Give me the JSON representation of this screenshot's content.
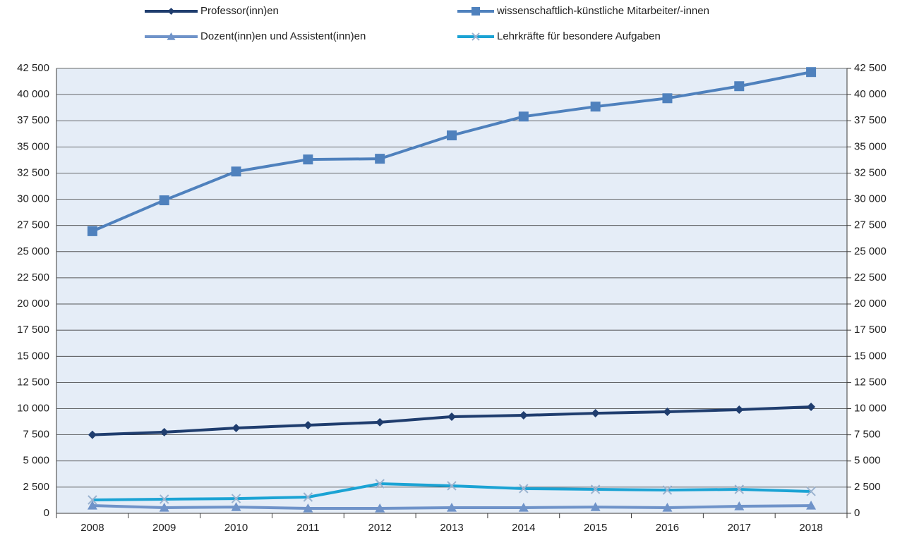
{
  "chart_data": {
    "type": "line",
    "categories": [
      "2008",
      "2009",
      "2010",
      "2011",
      "2012",
      "2013",
      "2014",
      "2015",
      "2016",
      "2017",
      "2018"
    ],
    "series": [
      {
        "name": "Professor(inn)en",
        "color": "#1f3d6e",
        "marker": "diamond",
        "values": [
          7500,
          7750,
          8150,
          8420,
          8700,
          9230,
          9360,
          9560,
          9700,
          9900,
          10170
        ]
      },
      {
        "name": "wissenschaftlich-künstliche Mitarbeiter/-innen",
        "color": "#4f81bd",
        "marker": "square",
        "values": [
          26950,
          29900,
          32650,
          33800,
          33870,
          36100,
          37900,
          38850,
          39650,
          40800,
          42150
        ]
      },
      {
        "name": "Dozent(inn)en und Assistent(inn)en",
        "color": "#6f93c9",
        "marker": "triangle",
        "values": [
          740,
          540,
          600,
          470,
          470,
          540,
          540,
          600,
          540,
          670,
          740
        ]
      },
      {
        "name": "Lehrkräfte für besondere Aufgaben",
        "color": "#1ba3d4",
        "marker": "x",
        "values": [
          1280,
          1350,
          1410,
          1550,
          2830,
          2630,
          2360,
          2290,
          2220,
          2290,
          2090
        ]
      }
    ],
    "ylim": [
      0,
      42500
    ],
    "yticks": [
      0,
      {
        "value": 2500,
        "label": "2 500"
      },
      {
        "value": 5000,
        "label": "5 000"
      },
      {
        "value": 7500,
        "label": "7 500"
      },
      {
        "value": 10000,
        "label": "10 000"
      },
      {
        "value": 12500,
        "label": "12 500"
      },
      {
        "value": 15000,
        "label": "15 000"
      },
      {
        "value": 17500,
        "label": "17 500"
      },
      {
        "value": 20000,
        "label": "20 000"
      },
      {
        "value": 22500,
        "label": "22 500"
      },
      {
        "value": 25000,
        "label": "25 000"
      },
      {
        "value": 27500,
        "label": "27 500"
      },
      {
        "value": 30000,
        "label": "30 000"
      },
      {
        "value": 32500,
        "label": "32 500"
      },
      {
        "value": 35000,
        "label": "35 000"
      },
      {
        "value": 37500,
        "label": "37 500"
      },
      {
        "value": 40000,
        "label": "40 000"
      },
      {
        "value": 42500,
        "label": "42 500"
      }
    ],
    "y2lim": [
      0,
      42500
    ],
    "y2ticks": [
      0,
      {
        "value": 2500,
        "label": "2 500"
      },
      {
        "value": 5000,
        "label": "5 000"
      },
      {
        "value": 7500,
        "label": "7 500"
      },
      {
        "value": 10000,
        "label": "10 000"
      },
      {
        "value": 12500,
        "label": "12 500"
      },
      {
        "value": 15000,
        "label": "15 000"
      },
      {
        "value": 17500,
        "label": "17 500"
      },
      {
        "value": 20000,
        "label": "20 000"
      },
      {
        "value": 22500,
        "label": "22 500"
      },
      {
        "value": 25000,
        "label": "25 000"
      },
      {
        "value": 27500,
        "label": "27 500"
      },
      {
        "value": 30000,
        "label": "30 000"
      },
      {
        "value": 32500,
        "label": "32 500"
      },
      {
        "value": 35000,
        "label": "35 000"
      },
      {
        "value": 37500,
        "label": "37 500"
      },
      {
        "value": 40000,
        "label": "40 000"
      },
      {
        "value": 42500,
        "label": "42 500"
      }
    ],
    "grid": true,
    "legend": "top"
  }
}
